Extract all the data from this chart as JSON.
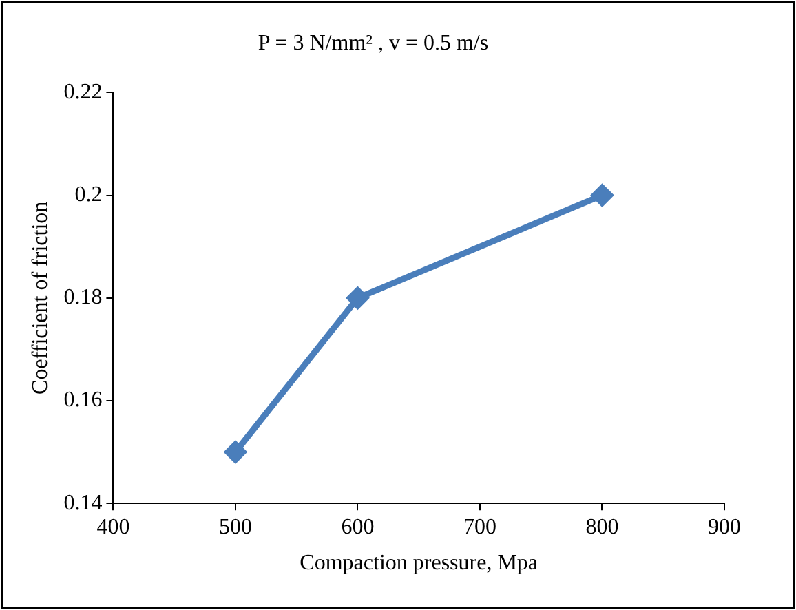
{
  "chart_data": {
    "type": "line",
    "title": "P = 3 N/mm² , v = 0.5 m/s",
    "xlabel": "Compaction pressure, Mpa",
    "ylabel": "Coefficient of friction",
    "x": [
      500,
      600,
      800
    ],
    "series": [
      {
        "color": "#4a7ebb",
        "values": [
          0.15,
          0.18,
          0.2
        ]
      }
    ],
    "xlim": [
      400,
      900
    ],
    "xticks": [
      400,
      500,
      600,
      700,
      800,
      900
    ],
    "ylim": [
      0.14,
      0.22
    ],
    "yticks": [
      0.14,
      0.16,
      0.18,
      0.2,
      0.22
    ],
    "grid": false,
    "legend": false,
    "marker": "diamond",
    "line_style": "solid"
  }
}
